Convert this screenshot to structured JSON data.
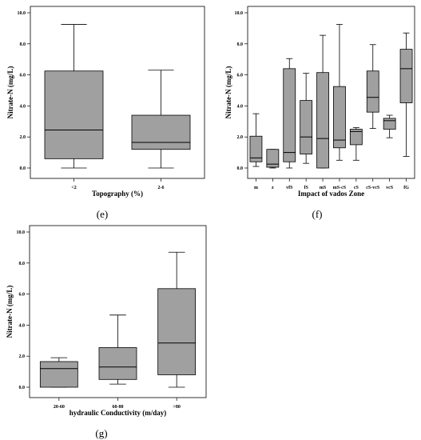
{
  "chart_data": [
    {
      "type": "box",
      "panel_label": "(e)",
      "xlabel": "Topography (%)",
      "ylabel": "Nitrate-N (mg/L)",
      "ylim": [
        0,
        10
      ],
      "yticks": [
        "0.0",
        "2.0",
        "4.0",
        "6.0",
        "8.0",
        "10.0"
      ],
      "categories": [
        "<2",
        "2-6"
      ],
      "boxes": [
        {
          "min": 0.0,
          "q1": 0.6,
          "median": 2.45,
          "q3": 6.25,
          "max": 9.25
        },
        {
          "min": 0.0,
          "q1": 1.2,
          "median": 1.65,
          "q3": 3.4,
          "max": 6.3
        }
      ],
      "box_color": "#a0a0a0"
    },
    {
      "type": "box",
      "panel_label": "(f)",
      "xlabel": "Impact of vados Zone",
      "ylabel": "Nitrate-N (mg/L)",
      "ylim": [
        0,
        10
      ],
      "yticks": [
        "0.0",
        "2.0",
        "4.0",
        "6.0",
        "8.0",
        "10.0"
      ],
      "categories": [
        "m",
        "z",
        "vfS",
        "fS",
        "mS",
        "mS-cS",
        "cS",
        "cS-vcS",
        "vcS",
        "fG"
      ],
      "boxes": [
        {
          "min": 0.1,
          "q1": 0.4,
          "median": 0.65,
          "q3": 2.05,
          "max": 3.5
        },
        {
          "min": 0.0,
          "q1": 0.05,
          "median": 0.25,
          "q3": 1.2,
          "max": 1.2
        },
        {
          "min": 0.0,
          "q1": 0.4,
          "median": 1.0,
          "q3": 6.4,
          "max": 7.05
        },
        {
          "min": 0.3,
          "q1": 0.9,
          "median": 2.0,
          "q3": 4.35,
          "max": 6.1
        },
        {
          "min": 0.0,
          "q1": 0.0,
          "median": 1.9,
          "q3": 6.15,
          "max": 8.55
        },
        {
          "min": 0.5,
          "q1": 1.3,
          "median": 1.8,
          "q3": 5.25,
          "max": 9.25
        },
        {
          "min": 0.5,
          "q1": 1.5,
          "median": 2.35,
          "q3": 2.5,
          "max": 2.6
        },
        {
          "min": 2.55,
          "q1": 3.6,
          "median": 4.55,
          "q3": 6.25,
          "max": 7.95
        },
        {
          "min": 1.95,
          "q1": 2.5,
          "median": 3.05,
          "q3": 3.2,
          "max": 3.4
        },
        {
          "min": 0.75,
          "q1": 4.2,
          "median": 6.4,
          "q3": 7.65,
          "max": 8.7
        }
      ],
      "box_color": "#a0a0a0"
    },
    {
      "type": "box",
      "panel_label": "(g)",
      "xlabel": "hydraulic Conductivity (m/day)",
      "ylabel": "Nitrate-N (mg/L)",
      "ylim": [
        0,
        10
      ],
      "yticks": [
        "0.0",
        "2.0",
        "4.0",
        "6.0",
        "8.0",
        "10.0"
      ],
      "categories": [
        "20-60",
        "60-80",
        ">80"
      ],
      "boxes": [
        {
          "min": 0.0,
          "q1": 0.0,
          "median": 1.2,
          "q3": 1.65,
          "max": 1.9
        },
        {
          "min": 0.2,
          "q1": 0.5,
          "median": 1.3,
          "q3": 2.55,
          "max": 4.65
        },
        {
          "min": 0.0,
          "q1": 0.8,
          "median": 2.85,
          "q3": 6.35,
          "max": 8.7
        }
      ],
      "box_color": "#a0a0a0"
    }
  ]
}
